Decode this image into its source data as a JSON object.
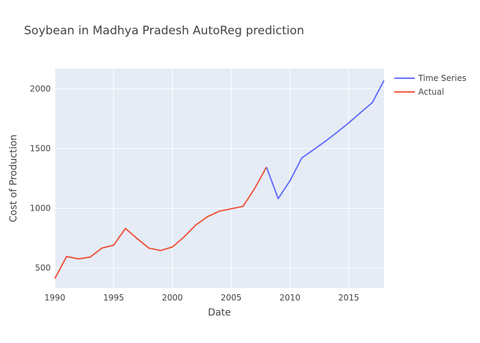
{
  "chart_data": {
    "type": "line",
    "title": "Soybean in Madhya Pradesh AutoReg prediction",
    "xlabel": "Date",
    "ylabel": "Cost of Production",
    "xlim": [
      1990,
      2018
    ],
    "ylim": [
      330,
      2170
    ],
    "x_ticks": [
      "1990",
      "1995",
      "2000",
      "2005",
      "2010",
      "2015"
    ],
    "y_ticks": [
      "500",
      "1000",
      "1500",
      "2000"
    ],
    "grid": true,
    "legend_position": "top-right",
    "series": [
      {
        "name": "Time Series",
        "color": "#636efa",
        "x": [
          2008,
          2009,
          2010,
          2011,
          2012,
          2013,
          2014,
          2015,
          2016,
          2017,
          2018
        ],
        "y": [
          1345,
          1080,
          1230,
          1420,
          1490,
          1560,
          1635,
          1715,
          1800,
          1885,
          2070
        ]
      },
      {
        "name": "Actual",
        "color": "#ef553b",
        "x": [
          1990,
          1991,
          1992,
          1993,
          1994,
          1995,
          1996,
          1997,
          1998,
          1999,
          2000,
          2001,
          2002,
          2003,
          2004,
          2005,
          2006,
          2007,
          2008
        ],
        "y": [
          410,
          595,
          575,
          590,
          665,
          690,
          830,
          745,
          665,
          645,
          675,
          760,
          860,
          930,
          975,
          995,
          1015,
          1165,
          1345
        ]
      }
    ]
  }
}
